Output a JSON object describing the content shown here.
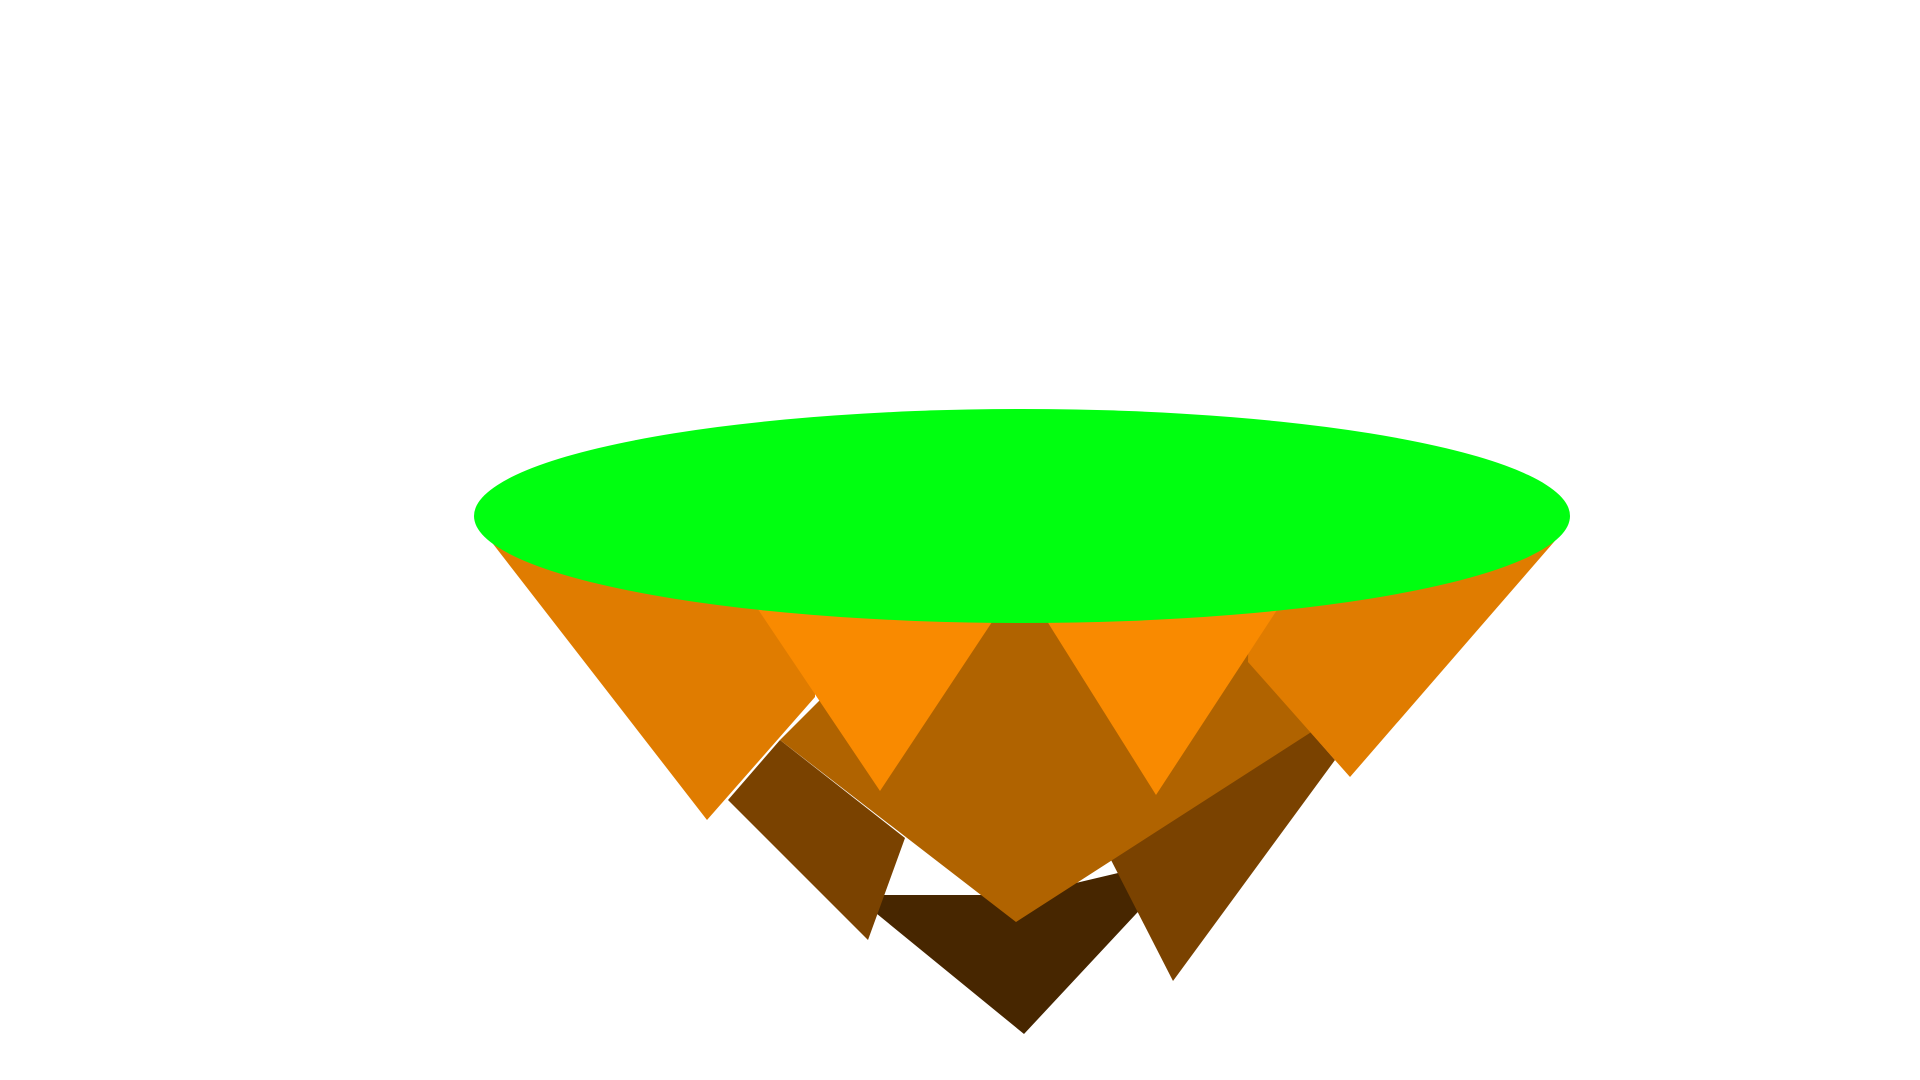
{
  "scene": {
    "object": "floating-island",
    "colors": {
      "background": "#ffffff",
      "grass_top": "#00ff10",
      "rock_light": "#f98a00",
      "rock_orange": "#e07c00",
      "rock_mid": "#b06300",
      "rock_dark": "#7a4200",
      "rock_darkest": "#472600"
    }
  }
}
